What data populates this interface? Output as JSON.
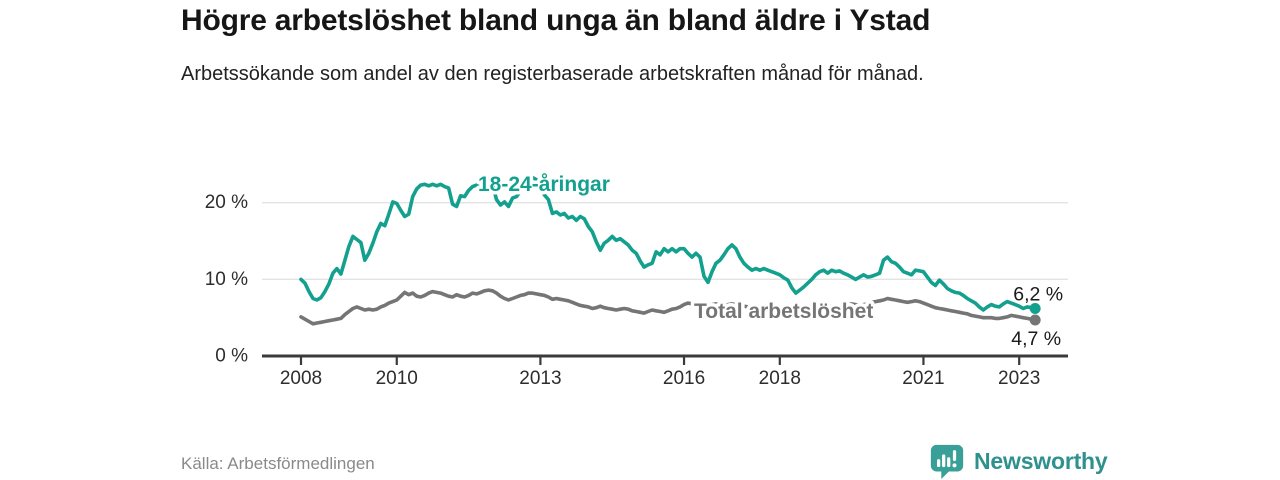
{
  "header": {
    "title": "Högre arbetslöshet bland unga än bland äldre i Ystad",
    "subtitle": "Arbetssökande som andel av den registerbaserade arbetskraften månad för månad."
  },
  "footer": {
    "source": "Källa: Arbetsförmedlingen",
    "brand": "Newsworthy",
    "brand_icon": "newsworthy-pin-barchart-icon"
  },
  "colors": {
    "young_line": "#14a08e",
    "total_line": "#757575",
    "axis": "#3a3a3a",
    "grid": "#e3e3e3",
    "tick_text": "#2d2d2d",
    "value_text": "#1a1a1a",
    "muted_text": "#8a8a8a",
    "brand": "#38a098",
    "brand_text": "#2e918e"
  },
  "chart_data": {
    "type": "line",
    "title": "Högre arbetslöshet bland unga än bland äldre i Ystad",
    "subtitle": "Arbetssökande som andel av den registerbaserade arbetskraften månad för månad.",
    "xlabel": "",
    "ylabel": "",
    "x_unit": "month",
    "x_start": "2008-01",
    "x_end": "2023-05",
    "grid": "horizontal-only",
    "legend_position": "inline-labels",
    "ylim": [
      0,
      24.5
    ],
    "x_ticks": [
      2008,
      2010,
      2013,
      2016,
      2018,
      2021,
      2023
    ],
    "y_ticks": [
      {
        "value": 0,
        "label": "0 %"
      },
      {
        "value": 10,
        "label": "10 %"
      },
      {
        "value": 20,
        "label": "20 %"
      }
    ],
    "series": [
      {
        "name": "Total arbetslöshet",
        "color": "#757575",
        "end_label": "4,7 %",
        "end_value": 4.7,
        "values": [
          5.1,
          4.8,
          4.5,
          4.2,
          4.3,
          4.4,
          4.5,
          4.6,
          4.7,
          4.8,
          4.9,
          5.4,
          5.8,
          6.2,
          6.4,
          6.2,
          6.0,
          6.1,
          6.0,
          6.1,
          6.4,
          6.6,
          6.9,
          7.1,
          7.3,
          7.8,
          8.3,
          8.0,
          8.2,
          7.8,
          7.7,
          7.9,
          8.2,
          8.4,
          8.3,
          8.2,
          8.0,
          7.8,
          7.7,
          8.0,
          7.8,
          7.7,
          7.9,
          8.2,
          8.1,
          8.3,
          8.5,
          8.6,
          8.5,
          8.2,
          7.8,
          7.5,
          7.3,
          7.5,
          7.7,
          7.9,
          8.0,
          8.2,
          8.2,
          8.1,
          8.0,
          7.9,
          7.7,
          7.4,
          7.5,
          7.4,
          7.3,
          7.2,
          7.0,
          6.8,
          6.6,
          6.5,
          6.4,
          6.2,
          6.3,
          6.5,
          6.3,
          6.2,
          6.1,
          6.0,
          6.1,
          6.2,
          6.1,
          5.9,
          5.8,
          5.7,
          5.6,
          5.8,
          6.0,
          5.9,
          5.8,
          5.7,
          5.9,
          6.1,
          6.2,
          6.4,
          6.7,
          6.9,
          6.8,
          6.7,
          6.6,
          6.5,
          6.6,
          6.7,
          6.8,
          6.7,
          6.6,
          6.7,
          6.8,
          6.7,
          6.6,
          6.5,
          6.4,
          6.5,
          6.6,
          6.5,
          6.6,
          6.5,
          6.4,
          6.5,
          6.4,
          6.3,
          6.2,
          6.1,
          6.0,
          6.1,
          6.2,
          6.3,
          6.4,
          6.5,
          6.6,
          6.7,
          6.6,
          6.5,
          6.4,
          6.5,
          6.6,
          6.7,
          6.8,
          6.7,
          6.6,
          6.7,
          6.8,
          7.0,
          7.1,
          7.2,
          7.3,
          7.5,
          7.4,
          7.3,
          7.2,
          7.1,
          7.0,
          7.1,
          7.2,
          7.1,
          6.9,
          6.7,
          6.5,
          6.3,
          6.2,
          6.1,
          6.0,
          5.9,
          5.8,
          5.7,
          5.6,
          5.5,
          5.3,
          5.2,
          5.1,
          5.0,
          5.0,
          5.0,
          4.9,
          4.9,
          5.0,
          5.1,
          5.3,
          5.2,
          5.1,
          5.0,
          4.9,
          4.8,
          4.7
        ]
      },
      {
        "name": "18-24-åringar",
        "color": "#14a08e",
        "end_label": "6,2 %",
        "end_value": 6.2,
        "values": [
          10.0,
          9.5,
          8.4,
          7.5,
          7.3,
          7.6,
          8.4,
          9.4,
          10.8,
          11.4,
          10.7,
          12.5,
          14.3,
          15.6,
          15.2,
          14.8,
          12.5,
          13.4,
          14.7,
          16.2,
          17.3,
          17.0,
          18.5,
          20.1,
          19.9,
          19.0,
          18.2,
          18.5,
          20.8,
          21.8,
          22.3,
          22.4,
          22.2,
          22.4,
          22.2,
          22.4,
          22.1,
          21.9,
          19.8,
          19.5,
          20.9,
          20.8,
          21.6,
          22.1,
          22.3,
          22.4,
          22.3,
          22.4,
          22.4,
          20.4,
          19.7,
          20.1,
          19.5,
          20.6,
          20.8,
          21.5,
          22.2,
          22.9,
          23.3,
          23.0,
          22.5,
          21.0,
          20.4,
          18.6,
          18.8,
          18.4,
          18.6,
          18.0,
          18.2,
          17.7,
          18.2,
          17.9,
          16.9,
          16.2,
          14.9,
          13.8,
          14.7,
          15.1,
          15.6,
          15.1,
          15.3,
          14.9,
          14.5,
          13.8,
          13.4,
          12.4,
          11.6,
          11.9,
          12.1,
          13.6,
          13.2,
          14.0,
          13.6,
          14.0,
          13.6,
          14.0,
          14.0,
          13.4,
          12.9,
          13.4,
          12.9,
          10.4,
          9.6,
          11.0,
          12.1,
          12.5,
          13.2,
          14.0,
          14.5,
          14.0,
          12.9,
          12.1,
          11.6,
          11.2,
          11.4,
          11.2,
          11.4,
          11.2,
          11.0,
          10.8,
          10.6,
          10.2,
          9.9,
          8.9,
          8.2,
          8.6,
          9.0,
          9.5,
          10.0,
          10.6,
          11.0,
          11.2,
          10.8,
          11.2,
          11.0,
          11.1,
          10.8,
          10.6,
          10.3,
          10.0,
          10.3,
          10.6,
          10.3,
          10.4,
          10.6,
          10.8,
          12.5,
          12.9,
          12.3,
          12.1,
          11.6,
          11.0,
          10.8,
          10.6,
          11.2,
          11.1,
          11.0,
          10.3,
          9.6,
          9.2,
          9.9,
          9.4,
          8.8,
          8.5,
          8.3,
          8.2,
          7.9,
          7.5,
          7.2,
          6.9,
          6.4,
          6.0,
          6.4,
          6.7,
          6.5,
          6.4,
          6.8,
          7.1,
          6.9,
          6.7,
          6.5,
          6.2,
          6.4,
          6.3,
          6.2
        ]
      }
    ]
  }
}
